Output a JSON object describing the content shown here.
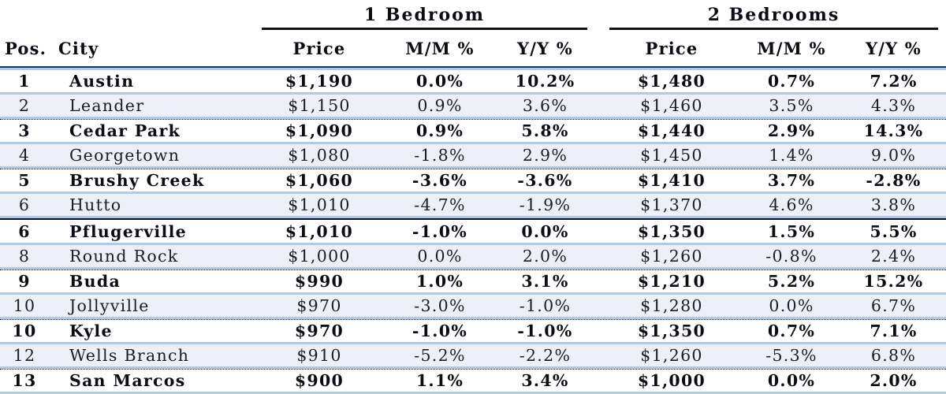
{
  "colors": {
    "accent-blue": "#b1c9e8",
    "header-navy": "#17365d",
    "stripe-bg": "#edeff9",
    "line-black": "#111111"
  },
  "table": {
    "group_headers": [
      "1 Bedroom",
      "2 Bedrooms"
    ],
    "column_headers": {
      "pos": "Pos.",
      "city": "City",
      "price": "Price",
      "mm": "M/M %",
      "yy": "Y/Y %"
    },
    "rows": [
      {
        "pos": "1",
        "city": "Austin",
        "bold": true,
        "b1": {
          "price": "$1,190",
          "mm": "0.0%",
          "yy": "10.2%"
        },
        "b2": {
          "price": "$1,480",
          "mm": "0.7%",
          "yy": "7.2%"
        }
      },
      {
        "pos": "2",
        "city": "Leander",
        "bold": false,
        "b1": {
          "price": "$1,150",
          "mm": "0.9%",
          "yy": "3.6%"
        },
        "b2": {
          "price": "$1,460",
          "mm": "3.5%",
          "yy": "4.3%"
        }
      },
      {
        "pos": "3",
        "city": "Cedar Park",
        "bold": true,
        "b1": {
          "price": "$1,090",
          "mm": "0.9%",
          "yy": "5.8%"
        },
        "b2": {
          "price": "$1,440",
          "mm": "2.9%",
          "yy": "14.3%"
        }
      },
      {
        "pos": "4",
        "city": "Georgetown",
        "bold": false,
        "b1": {
          "price": "$1,080",
          "mm": "-1.8%",
          "yy": "2.9%"
        },
        "b2": {
          "price": "$1,450",
          "mm": "1.4%",
          "yy": "9.0%"
        }
      },
      {
        "pos": "5",
        "city": "Brushy Creek",
        "bold": true,
        "b1": {
          "price": "$1,060",
          "mm": "-3.6%",
          "yy": "-3.6%"
        },
        "b2": {
          "price": "$1,410",
          "mm": "3.7%",
          "yy": "-2.8%"
        }
      },
      {
        "pos": "6",
        "city": "Hutto",
        "bold": false,
        "b1": {
          "price": "$1,010",
          "mm": "-4.7%",
          "yy": "-1.9%"
        },
        "b2": {
          "price": "$1,370",
          "mm": "4.6%",
          "yy": "3.8%"
        }
      },
      {
        "pos": "6",
        "city": "Pflugerville",
        "bold": true,
        "b1": {
          "price": "$1,010",
          "mm": "-1.0%",
          "yy": "0.0%"
        },
        "b2": {
          "price": "$1,350",
          "mm": "1.5%",
          "yy": "5.5%"
        }
      },
      {
        "pos": "8",
        "city": "Round Rock",
        "bold": false,
        "b1": {
          "price": "$1,000",
          "mm": "0.0%",
          "yy": "2.0%"
        },
        "b2": {
          "price": "$1,260",
          "mm": "-0.8%",
          "yy": "2.4%"
        }
      },
      {
        "pos": "9",
        "city": "Buda",
        "bold": true,
        "b1": {
          "price": "$990",
          "mm": "1.0%",
          "yy": "3.1%"
        },
        "b2": {
          "price": "$1,210",
          "mm": "5.2%",
          "yy": "15.2%"
        }
      },
      {
        "pos": "10",
        "city": "Jollyville",
        "bold": false,
        "b1": {
          "price": "$970",
          "mm": "-3.0%",
          "yy": "-1.0%"
        },
        "b2": {
          "price": "$1,280",
          "mm": "0.0%",
          "yy": "6.7%"
        }
      },
      {
        "pos": "10",
        "city": "Kyle",
        "bold": true,
        "b1": {
          "price": "$970",
          "mm": "-1.0%",
          "yy": "-1.0%"
        },
        "b2": {
          "price": "$1,350",
          "mm": "0.7%",
          "yy": "7.1%"
        }
      },
      {
        "pos": "12",
        "city": "Wells Branch",
        "bold": false,
        "b1": {
          "price": "$910",
          "mm": "-5.2%",
          "yy": "-2.2%"
        },
        "b2": {
          "price": "$1,260",
          "mm": "-5.3%",
          "yy": "6.8%"
        }
      },
      {
        "pos": "13",
        "city": "San Marcos",
        "bold": true,
        "b1": {
          "price": "$900",
          "mm": "1.1%",
          "yy": "3.4%"
        },
        "b2": {
          "price": "$1,000",
          "mm": "0.0%",
          "yy": "2.0%"
        }
      }
    ]
  }
}
